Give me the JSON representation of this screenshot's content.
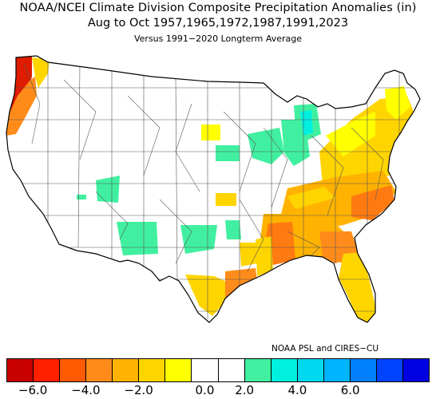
{
  "title": {
    "line1": "NOAA/NCEI Climate Division Composite Precipitation Anomalies (in)",
    "line2": "Aug to Oct  1957,1965,1972,1987,1991,2023",
    "line3": "Versus 1991−2020 Longterm Average"
  },
  "credit": "NOAA PSL and CIRES−CU",
  "legend": {
    "colors": [
      "#c80000",
      "#ff2000",
      "#ff5a00",
      "#ff8c1a",
      "#ffb300",
      "#ffd500",
      "#ffff00",
      "#ffffff",
      "#ffffff",
      "#40f0a0",
      "#00f0e0",
      "#00d8f0",
      "#00b4ff",
      "#0080ff",
      "#0044ff",
      "#0000e0"
    ],
    "tick_labels": [
      "−6.0",
      "−4.0",
      "−2.0",
      "0.0",
      "2.0",
      "4.0",
      "6.0"
    ]
  },
  "map": {
    "region": "CONUS climate divisions",
    "fill_colors": {
      "very_dry": "#e01c00",
      "dry_strong": "#ff7a10",
      "dry": "#ffb000",
      "slightly_dry": "#ffd500",
      "slightly_dry_light": "#ffff00",
      "near_normal": "#ffffff",
      "slightly_wet": "#40f0a0",
      "wet": "#00f0e0"
    }
  }
}
